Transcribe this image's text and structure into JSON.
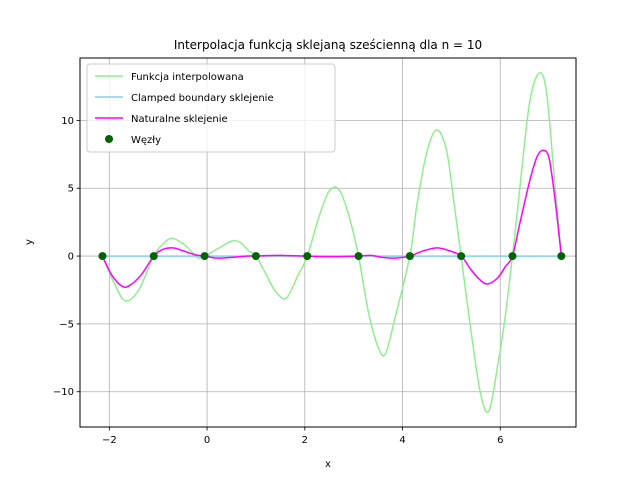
{
  "chart_data": {
    "type": "line",
    "title": "Interpolacja funkcją sklejaną sześcienną dla n = 10",
    "xlabel": "x",
    "ylabel": "y",
    "xlim": [
      -2.6,
      7.55
    ],
    "ylim": [
      -12.6,
      14.6
    ],
    "xticks": [
      -2,
      0,
      2,
      4,
      6
    ],
    "yticks": [
      -10,
      -5,
      0,
      5,
      10
    ],
    "xtick_labels": [
      "−2",
      "0",
      "2",
      "4",
      "6"
    ],
    "ytick_labels": [
      "−10",
      "−5",
      "0",
      "5",
      "10"
    ],
    "grid": true,
    "legend_position": "upper-left",
    "series": [
      {
        "name": "Funkcja interpolowana",
        "kind": "line",
        "color": "#90ee90",
        "x": [
          -2.14,
          -1.9,
          -1.67,
          -1.4,
          -1.09,
          -0.9,
          -0.72,
          -0.45,
          -0.2,
          -0.05,
          0.2,
          0.5,
          0.68,
          0.85,
          1.0,
          1.2,
          1.4,
          1.62,
          1.85,
          2.05,
          2.3,
          2.5,
          2.7,
          2.9,
          3.1,
          3.3,
          3.5,
          3.65,
          3.85,
          4.15,
          4.3,
          4.5,
          4.7,
          4.9,
          5.05,
          5.2,
          5.4,
          5.6,
          5.77,
          5.95,
          6.1,
          6.25,
          6.4,
          6.6,
          6.8,
          6.95,
          7.1,
          7.25
        ],
        "y": [
          0,
          -2.0,
          -3.3,
          -2.5,
          0,
          0.9,
          1.3,
          0.8,
          -0.1,
          0,
          0.5,
          1.1,
          1.0,
          0.4,
          0,
          -1.3,
          -2.6,
          -3.1,
          -1.5,
          0,
          3.0,
          4.8,
          4.9,
          3.0,
          0,
          -4.1,
          -6.7,
          -7.2,
          -4.5,
          0,
          3.9,
          7.7,
          9.3,
          7.8,
          4.0,
          0,
          -5.5,
          -10.2,
          -11.4,
          -8.0,
          -4.5,
          0,
          5.0,
          11.3,
          13.5,
          12.0,
          6.0,
          0
        ]
      },
      {
        "name": "Clamped boundary sklejenie",
        "kind": "line",
        "color": "#87ceeb",
        "x": [
          -2.14,
          7.25
        ],
        "y": [
          0,
          0
        ]
      },
      {
        "name": "Naturalne sklejenie",
        "kind": "line",
        "color": "#ff00ff",
        "x": [
          -2.14,
          -1.95,
          -1.75,
          -1.6,
          -1.35,
          -1.09,
          -0.9,
          -0.7,
          -0.5,
          -0.25,
          -0.05,
          0.2,
          0.5,
          0.8,
          1.0,
          1.2,
          1.5,
          1.8,
          2.05,
          2.3,
          2.6,
          2.85,
          3.1,
          3.35,
          3.6,
          3.85,
          4.15,
          4.4,
          4.7,
          4.95,
          5.2,
          5.4,
          5.6,
          5.75,
          5.95,
          6.1,
          6.25,
          6.4,
          6.6,
          6.75,
          6.88,
          7.0,
          7.12,
          7.25
        ],
        "y": [
          0,
          -1.4,
          -2.2,
          -2.2,
          -1.4,
          0,
          0.5,
          0.6,
          0.4,
          0.1,
          0,
          -0.15,
          -0.1,
          0.0,
          0,
          0.03,
          0.05,
          0.02,
          0,
          -0.03,
          -0.04,
          -0.02,
          0,
          0.05,
          -0.1,
          -0.15,
          0,
          0.35,
          0.6,
          0.4,
          0,
          -1.0,
          -1.8,
          -2.05,
          -1.6,
          -0.8,
          0,
          2.4,
          5.5,
          7.3,
          7.8,
          7.2,
          4.2,
          0
        ]
      },
      {
        "name": "Węzły",
        "kind": "scatter",
        "color": "#006400",
        "x": [
          -2.14,
          -1.09,
          -0.05,
          1.0,
          2.05,
          3.1,
          4.15,
          5.2,
          6.25,
          7.25
        ],
        "y": [
          0,
          0,
          0,
          0,
          0,
          0,
          0,
          0,
          0,
          0
        ]
      }
    ]
  }
}
